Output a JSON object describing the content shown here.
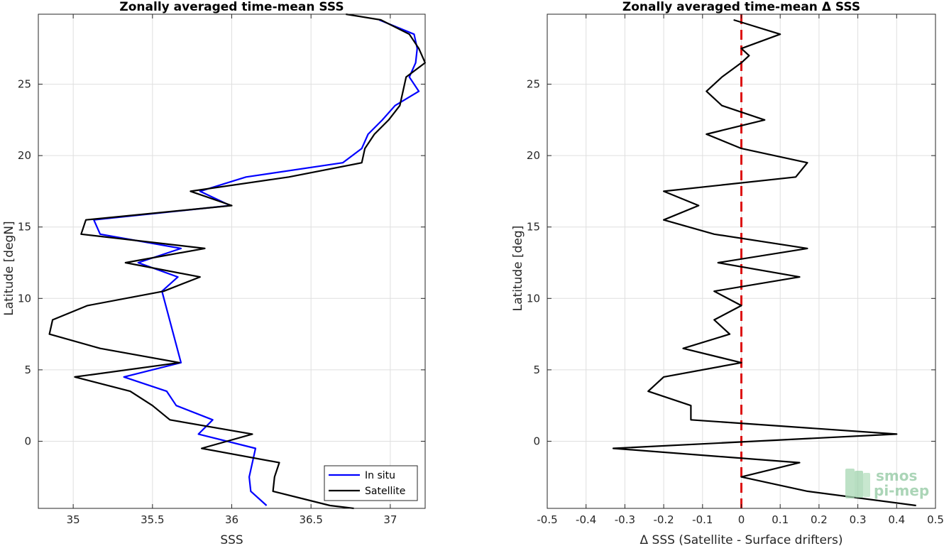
{
  "chart_data": [
    {
      "type": "line",
      "title": "Zonally averaged time-mean SSS",
      "xlabel": "SSS",
      "ylabel": "Latitude [degN]",
      "xlim": [
        34.78,
        37.22
      ],
      "ylim": [
        -4.7,
        29.9
      ],
      "xticks": [
        35,
        35.5,
        36,
        36.5,
        37
      ],
      "xtick_labels": [
        "35",
        "35.5",
        "36",
        "36.5",
        "37"
      ],
      "yticks": [
        0,
        5,
        10,
        15,
        20,
        25
      ],
      "ytick_labels": [
        "0",
        "5",
        "10",
        "15",
        "20",
        "25"
      ],
      "grid": true,
      "legend_position": "bottom-right",
      "series": [
        {
          "name": "In situ",
          "color": "#0000ff",
          "x": [
            36.22,
            36.12,
            36.11,
            36.15,
            35.79,
            35.88,
            35.65,
            35.59,
            35.32,
            35.68,
            35.56,
            35.66,
            35.41,
            35.68,
            35.17,
            35.13,
            35.99,
            35.8,
            36.09,
            36.7,
            36.82,
            36.86,
            36.95,
            37.03,
            37.18,
            37.12,
            37.16,
            37.17,
            37.15,
            36.93
          ],
          "y": [
            -4.5,
            -3.5,
            -2.5,
            -0.5,
            0.5,
            1.5,
            2.5,
            3.5,
            4.5,
            5.5,
            10.5,
            11.5,
            12.5,
            13.5,
            14.5,
            15.5,
            16.5,
            17.5,
            18.5,
            19.5,
            20.5,
            21.5,
            22.5,
            23.5,
            24.5,
            25.5,
            26.5,
            27.5,
            28.5,
            29.5
          ]
        },
        {
          "name": "Satellite",
          "color": "#000000",
          "x": [
            36.77,
            36.62,
            36.26,
            36.27,
            36.3,
            35.81,
            36.13,
            35.61,
            35.5,
            35.36,
            35.01,
            35.67,
            35.17,
            34.85,
            34.87,
            35.09,
            35.57,
            35.8,
            35.33,
            35.83,
            35.05,
            35.08,
            36.0,
            35.74,
            36.36,
            36.82,
            36.84,
            36.9,
            36.99,
            37.06,
            37.1,
            37.22,
            37.18,
            37.12,
            36.94,
            36.72
          ],
          "y": [
            -4.7,
            -4.5,
            -3.5,
            -2.5,
            -1.5,
            -0.5,
            0.5,
            1.5,
            2.5,
            3.5,
            4.5,
            5.5,
            6.5,
            7.5,
            8.5,
            9.5,
            10.5,
            11.5,
            12.5,
            13.5,
            14.5,
            15.5,
            16.5,
            17.5,
            18.5,
            19.5,
            20.5,
            21.5,
            22.5,
            23.5,
            25.5,
            26.5,
            27.5,
            28.5,
            29.5,
            29.9
          ]
        }
      ]
    },
    {
      "type": "line",
      "title": "Zonally averaged time-mean Δ SSS",
      "xlabel": "Δ SSS (Satellite - Surface drifters)",
      "ylabel": "Latitude [deg]",
      "xlim": [
        -0.5,
        0.5
      ],
      "ylim": [
        -4.7,
        29.9
      ],
      "xticks": [
        -0.5,
        -0.4,
        -0.3,
        -0.2,
        -0.1,
        0,
        0.1,
        0.2,
        0.3,
        0.4,
        0.5
      ],
      "xtick_labels": [
        "-0.5",
        "-0.4",
        "-0.3",
        "-0.2",
        "-0.1",
        "0",
        "0.1",
        "0.2",
        "0.3",
        "0.4",
        "0.5"
      ],
      "yticks": [
        0,
        5,
        10,
        15,
        20,
        25
      ],
      "ytick_labels": [
        "0",
        "5",
        "10",
        "15",
        "20",
        "25"
      ],
      "grid": true,
      "series": [
        {
          "color": "#000000",
          "x": [
            0.45,
            0.17,
            0.0,
            0.15,
            -0.33,
            0.4,
            -0.13,
            -0.13,
            -0.24,
            -0.2,
            0.0,
            -0.15,
            -0.03,
            -0.07,
            0.0,
            -0.07,
            0.15,
            -0.06,
            0.17,
            -0.07,
            -0.2,
            -0.11,
            -0.2,
            0.14,
            0.17,
            0.0,
            -0.09,
            0.06,
            -0.05,
            -0.09,
            -0.05,
            0.0,
            0.02,
            0.0,
            0.1,
            -0.02
          ],
          "y": [
            -4.5,
            -3.5,
            -2.5,
            -1.5,
            -0.5,
            0.5,
            1.5,
            2.5,
            3.5,
            4.5,
            5.5,
            6.5,
            7.5,
            8.5,
            9.5,
            10.5,
            11.5,
            12.5,
            13.5,
            14.5,
            15.5,
            16.5,
            17.5,
            18.5,
            19.5,
            20.5,
            21.5,
            22.5,
            23.5,
            24.5,
            25.5,
            26.5,
            27.0,
            27.5,
            28.5,
            29.5
          ]
        }
      ],
      "reference_line": {
        "x": 0,
        "color": "#dd1111",
        "style": "dashed"
      }
    }
  ],
  "watermark": {
    "line1": "smos",
    "line2": "pi-mep"
  }
}
